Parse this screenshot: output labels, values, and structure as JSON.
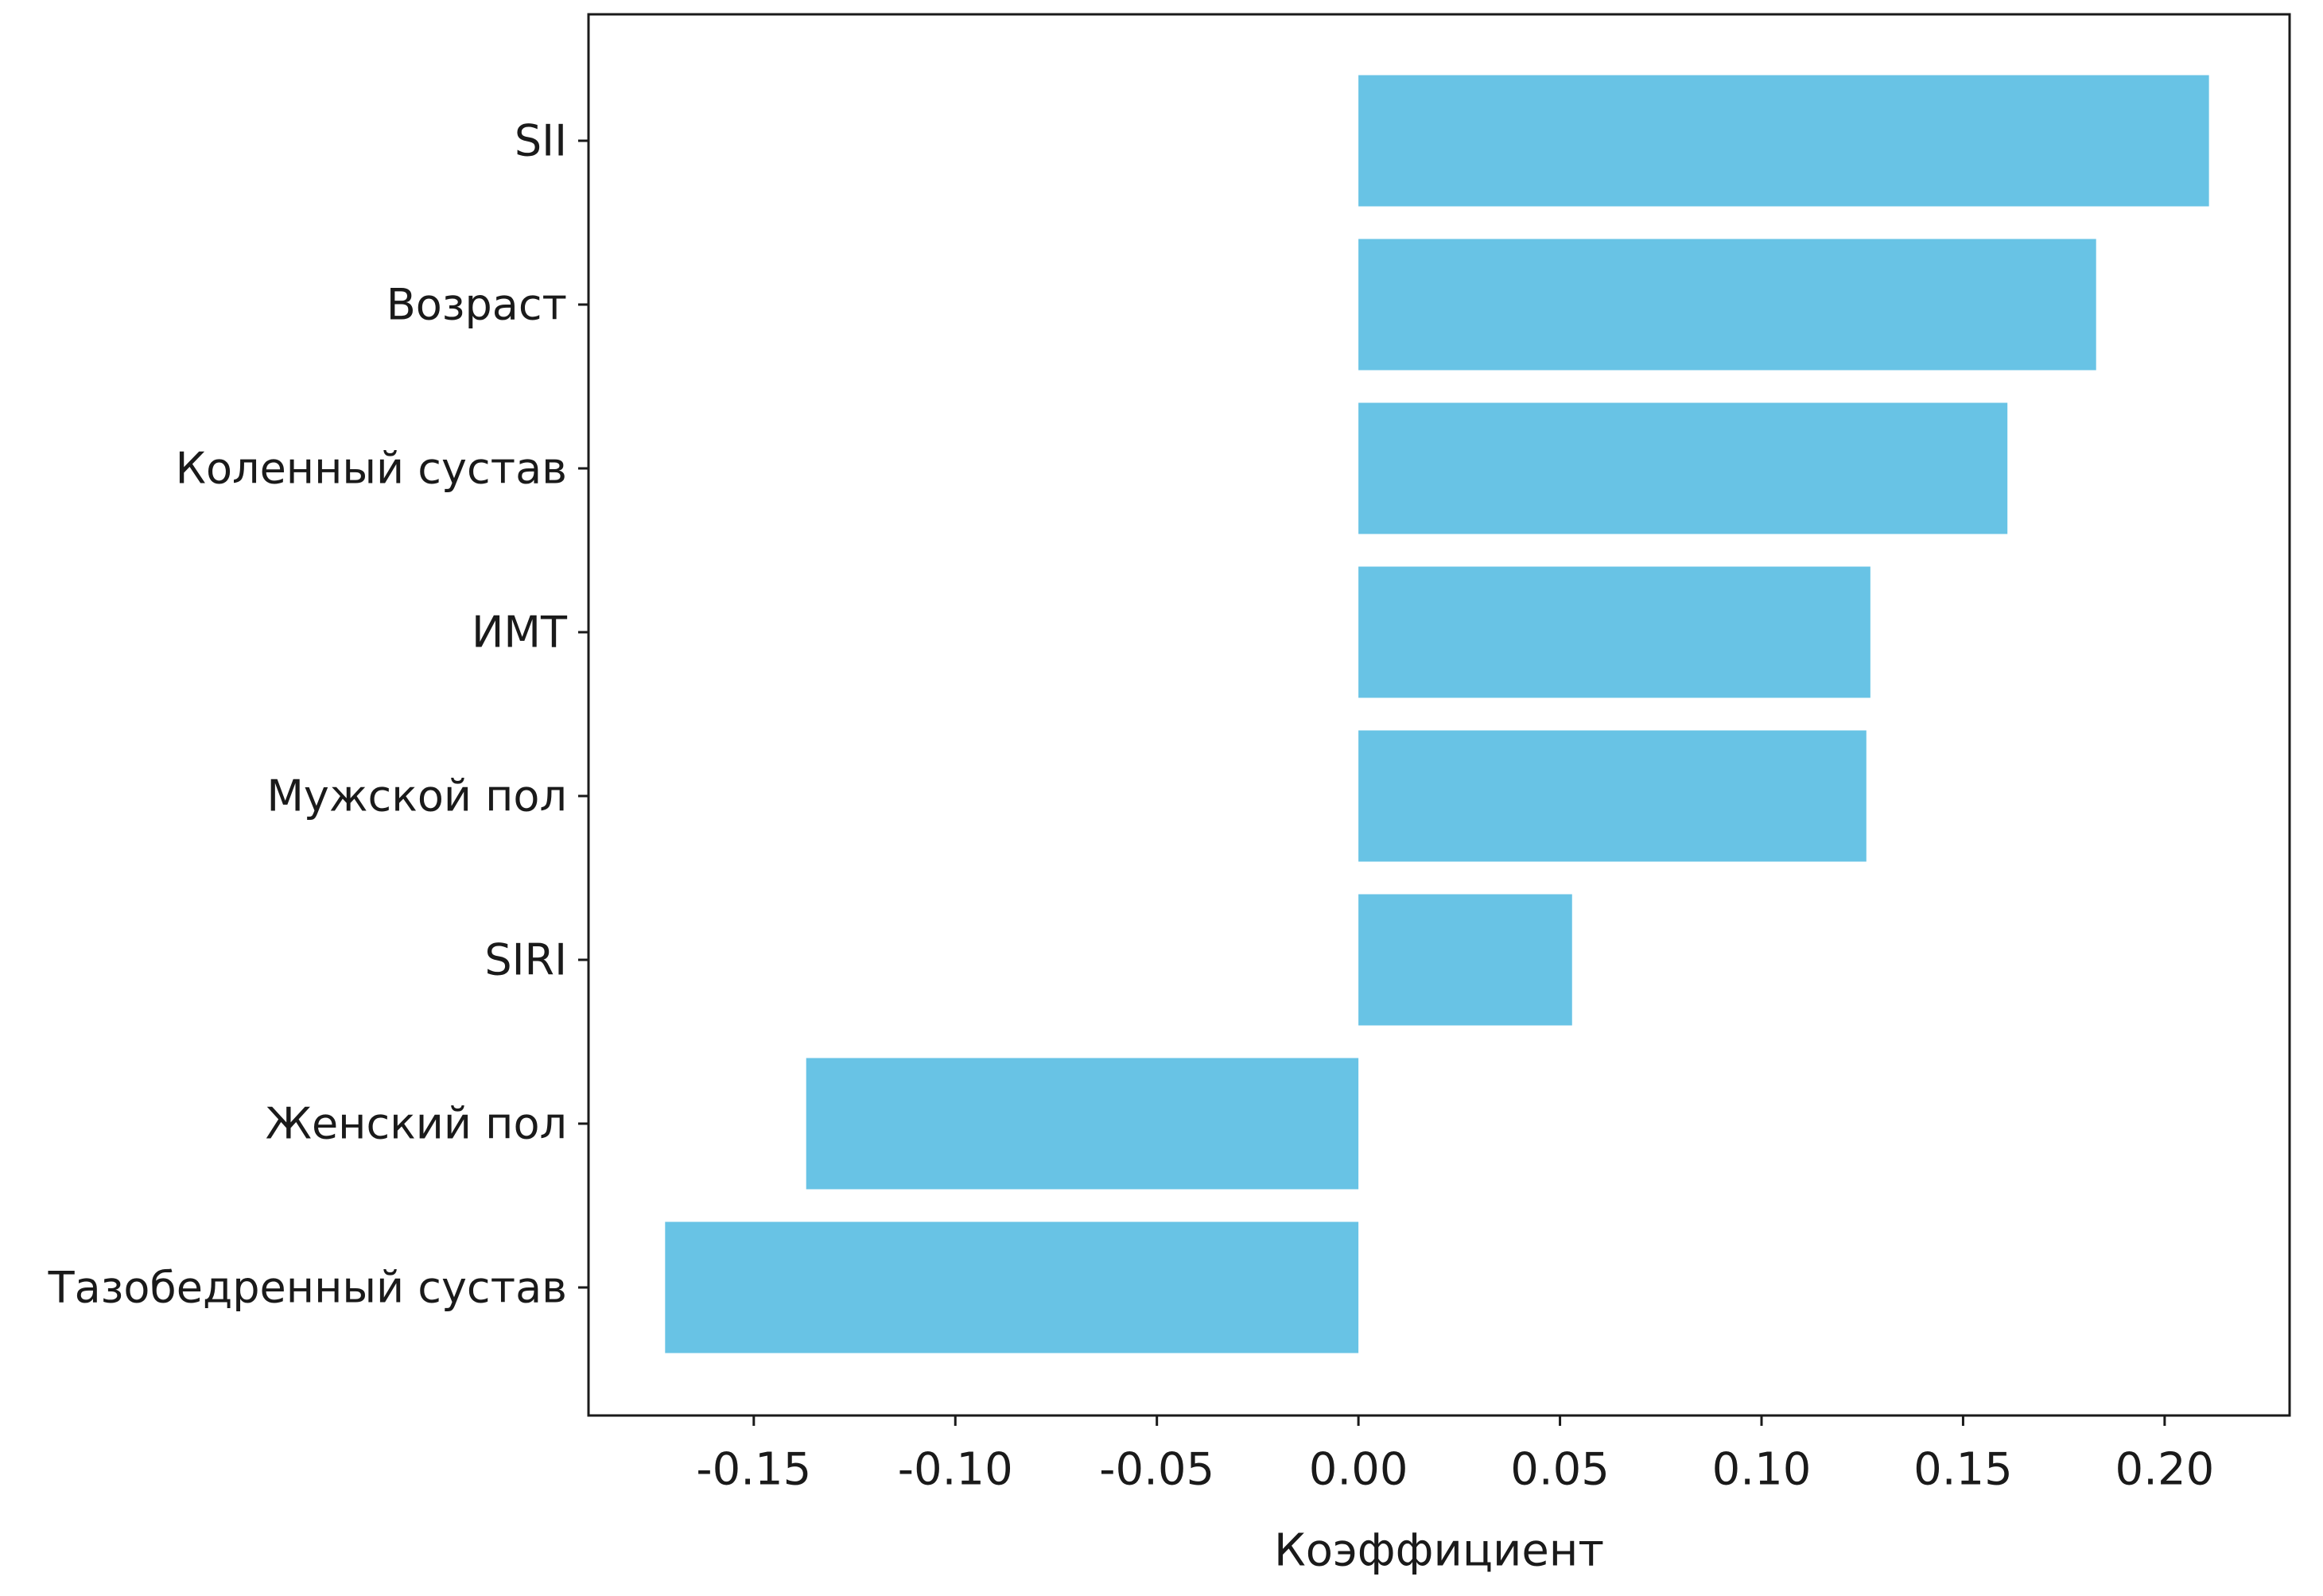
{
  "chart_data": {
    "type": "bar",
    "orientation": "horizontal",
    "title": "",
    "xlabel": "Коэффициент",
    "ylabel": "",
    "categories": [
      "SII",
      "Возраст",
      "Коленный сустав",
      "ИМТ",
      "Мужской пол",
      "SIRI",
      "Женский пол",
      "Тазобедренный сустав"
    ],
    "values": [
      0.211,
      0.183,
      0.161,
      0.127,
      0.126,
      0.053,
      -0.137,
      -0.172
    ],
    "xlim": [
      -0.191,
      0.231
    ],
    "xticks": [
      -0.15,
      -0.1,
      -0.05,
      0.0,
      0.05,
      0.1,
      0.15,
      0.2
    ],
    "xtick_labels": [
      "-0.15",
      "-0.10",
      "-0.05",
      "0.00",
      "0.05",
      "0.10",
      "0.15",
      "0.20"
    ],
    "bar_color": "#68c3e5",
    "grid": false,
    "legend": null
  }
}
